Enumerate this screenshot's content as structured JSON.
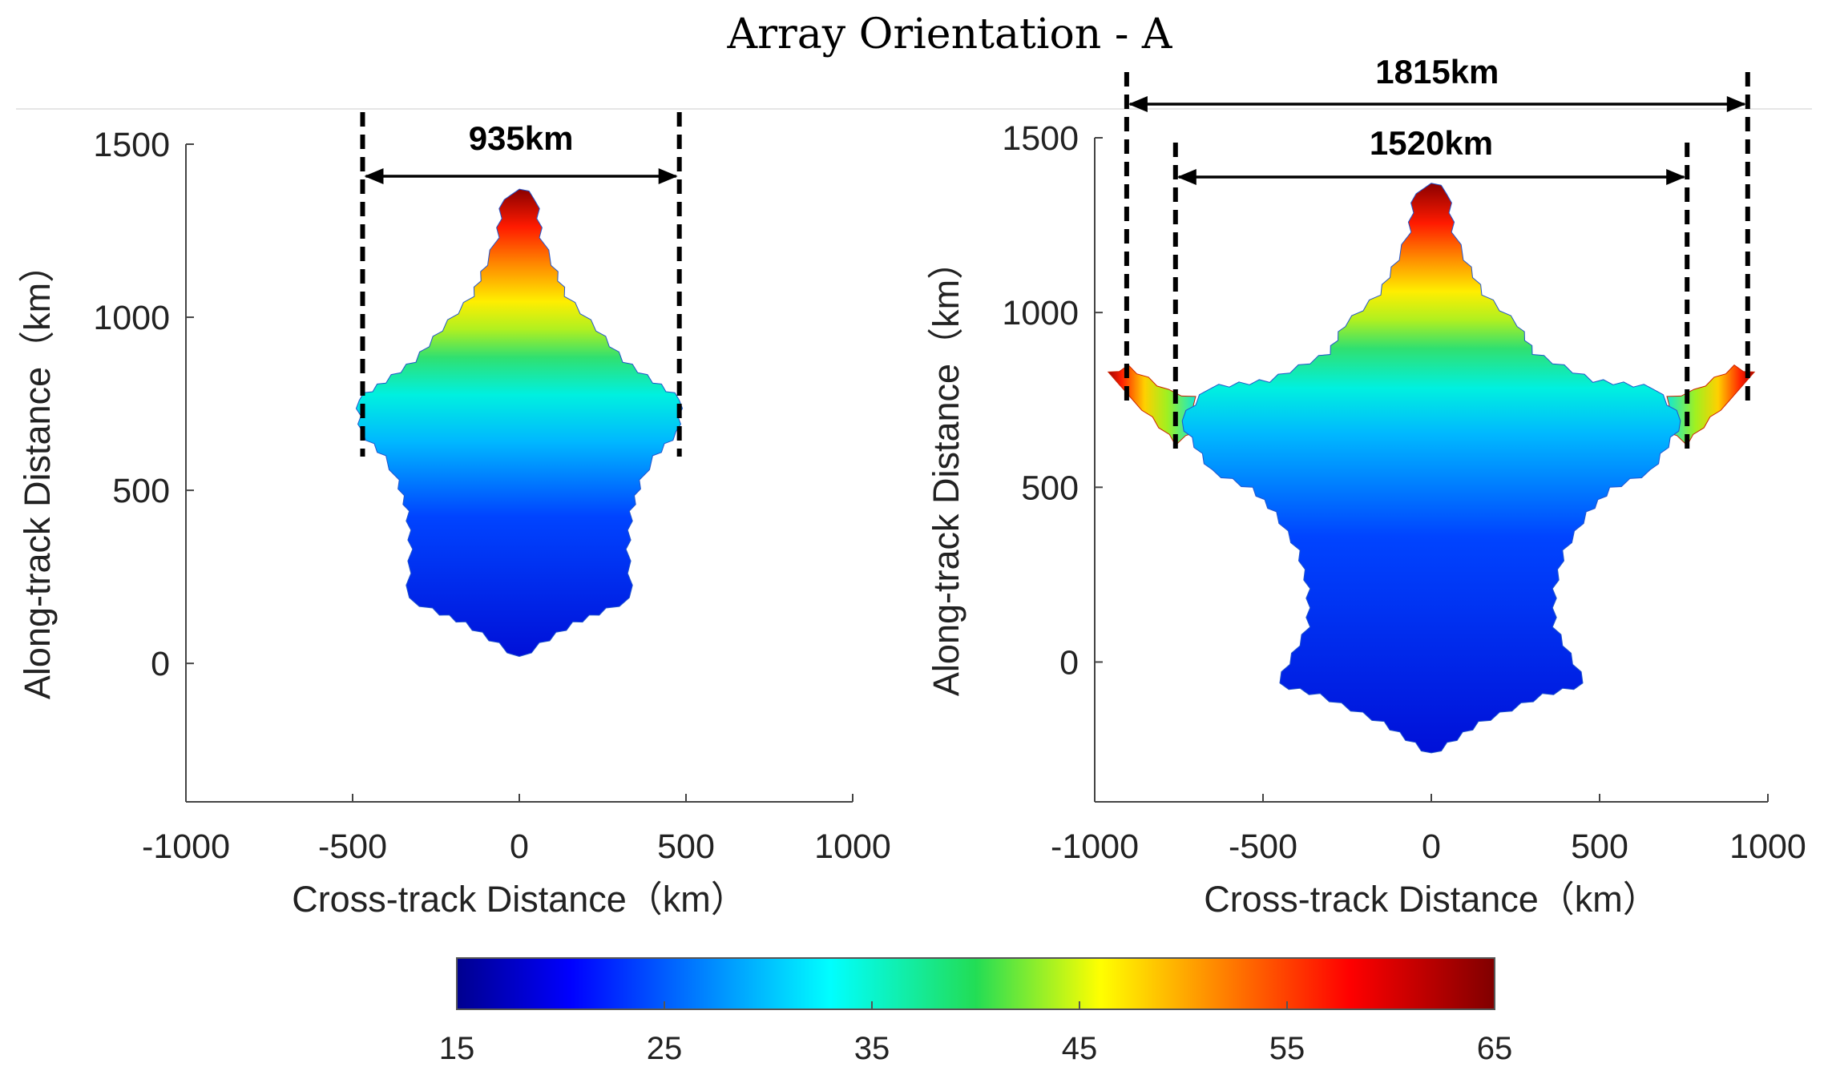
{
  "figure": {
    "title": "Array Orientation - A"
  },
  "chart_data": [
    {
      "type": "scatter",
      "panel": "left",
      "xlabel": "Cross-track Distance（km）",
      "ylabel": "Along-track Distance（km）",
      "xlim": [
        -1000,
        1000
      ],
      "ylim": [
        -400,
        1500
      ],
      "xticks": [
        "-1000",
        "-500",
        "0",
        "500",
        "1000"
      ],
      "yticks": [
        "0",
        "500",
        "1000",
        "1500"
      ],
      "color_variable_range": [
        15,
        65
      ],
      "coverage_shape": "star-shaped swath, tip at 1370 km, arms to ±480 km at ~720 km, bottom at 0 km",
      "annotations": [
        {
          "label": "935km",
          "x_start": -470,
          "x_end": 480
        }
      ]
    },
    {
      "type": "scatter",
      "panel": "right",
      "xlabel": "Cross-track Distance（km）",
      "ylabel": "Along-track Distance（km）",
      "xlim": [
        -1000,
        1000
      ],
      "ylim": [
        -400,
        1500
      ],
      "xticks": [
        "-1000",
        "-500",
        "0",
        "500",
        "1000"
      ],
      "yticks": [
        "0",
        "500",
        "1000",
        "1500"
      ],
      "color_variable_range": [
        15,
        65
      ],
      "coverage_shape": "star-shaped swath, tip at 1370 km, arms to ±960 km at ~830 km, bottom at -260 km",
      "annotations": [
        {
          "label": "1815km",
          "x_start": -905,
          "x_end": 940
        },
        {
          "label": "1520km",
          "x_start": -760,
          "x_end": 760
        }
      ]
    }
  ],
  "colorbar": {
    "min": 15,
    "max": 65,
    "ticks": [
      "15",
      "25",
      "35",
      "45",
      "55",
      "65"
    ]
  }
}
